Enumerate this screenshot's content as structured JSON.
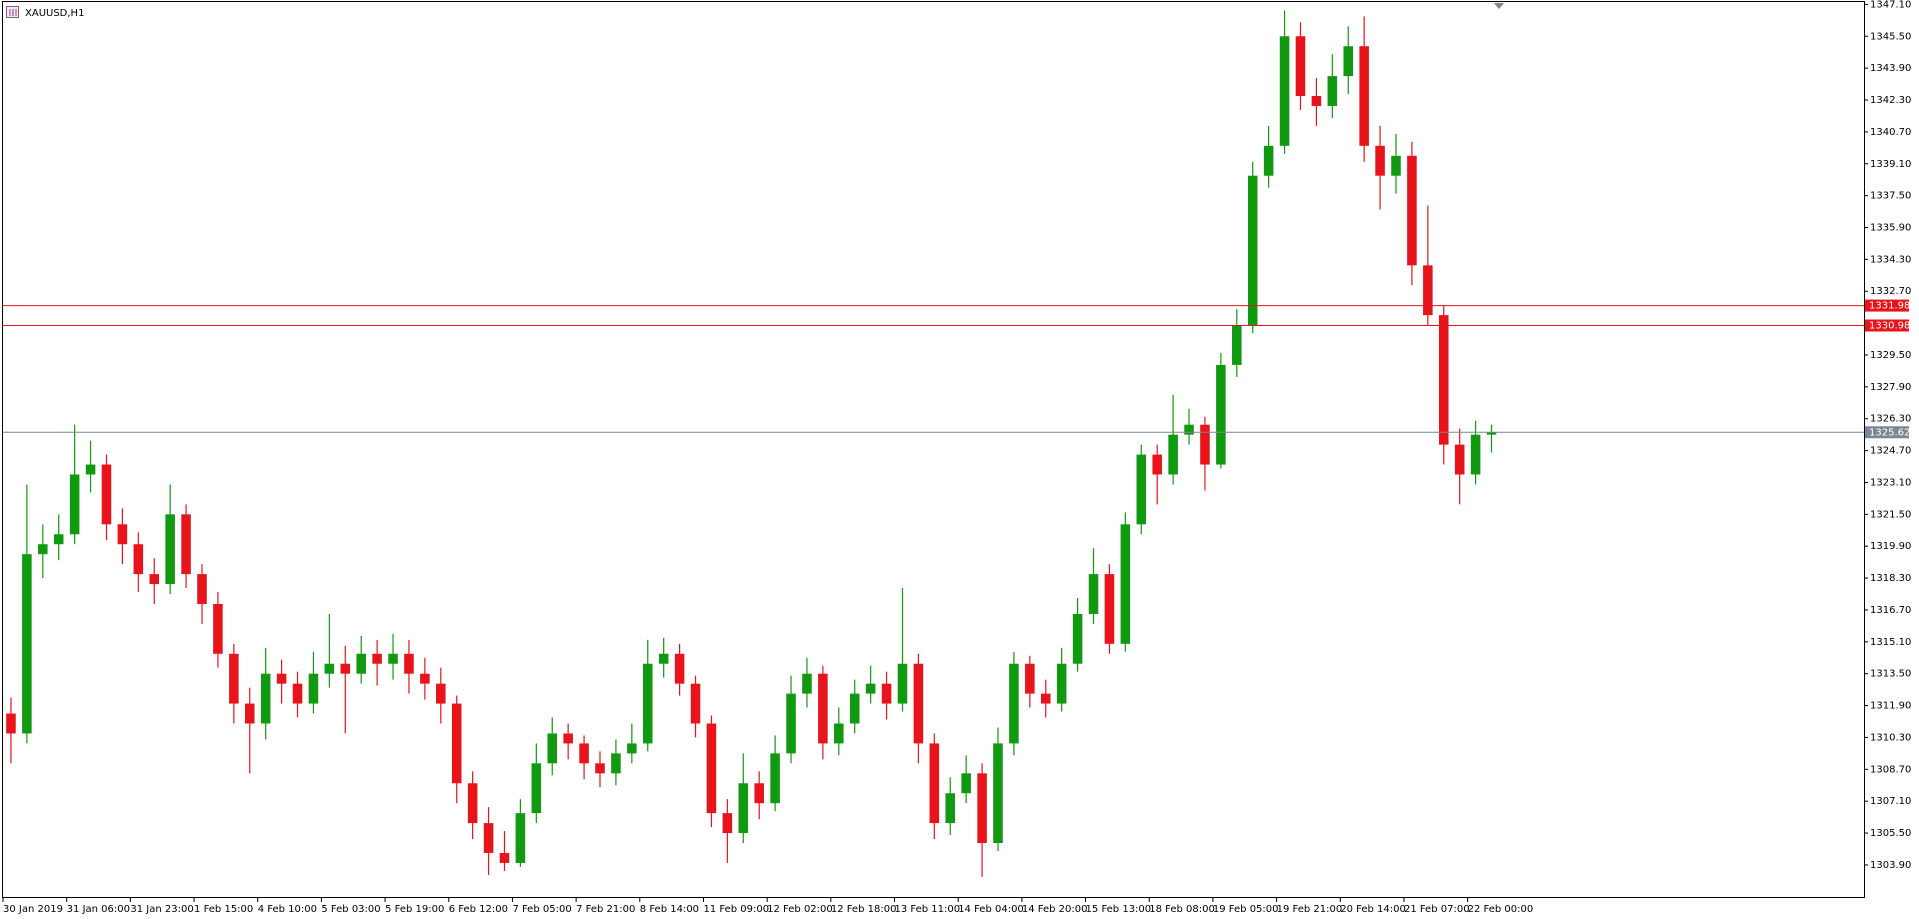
{
  "chart_data": {
    "type": "candlestick",
    "title": "XAUUSD,H1",
    "up_color": "#119911",
    "down_color": "#e8141c",
    "ylim": [
      1302.24,
      1347.22
    ],
    "yticks": [
      {
        "value": 1303.9,
        "label": "1303.90"
      },
      {
        "value": 1305.5,
        "label": "1305.50"
      },
      {
        "value": 1307.1,
        "label": "1307.10"
      },
      {
        "value": 1308.7,
        "label": "1308.70"
      },
      {
        "value": 1310.3,
        "label": "1310.30"
      },
      {
        "value": 1311.9,
        "label": "1311.90"
      },
      {
        "value": 1313.5,
        "label": "1313.50"
      },
      {
        "value": 1315.1,
        "label": "1315.10"
      },
      {
        "value": 1316.7,
        "label": "1316.70"
      },
      {
        "value": 1318.3,
        "label": "1318.30"
      },
      {
        "value": 1319.9,
        "label": "1319.90"
      },
      {
        "value": 1321.5,
        "label": "1321.50"
      },
      {
        "value": 1323.1,
        "label": "1323.10"
      },
      {
        "value": 1324.7,
        "label": "1324.70"
      },
      {
        "value": 1326.3,
        "label": "1326.30"
      },
      {
        "value": 1327.9,
        "label": "1327.90"
      },
      {
        "value": 1329.5,
        "label": "1329.50"
      },
      {
        "value": 1332.7,
        "label": "1332.70"
      },
      {
        "value": 1334.3,
        "label": "1334.30"
      },
      {
        "value": 1335.9,
        "label": "1335.90"
      },
      {
        "value": 1337.5,
        "label": "1337.50"
      },
      {
        "value": 1339.1,
        "label": "1339.10"
      },
      {
        "value": 1340.7,
        "label": "1340.70"
      },
      {
        "value": 1342.3,
        "label": "1342.30"
      },
      {
        "value": 1343.9,
        "label": "1343.90"
      },
      {
        "value": 1345.5,
        "label": "1345.50"
      },
      {
        "value": 1347.1,
        "label": "1347.10"
      }
    ],
    "levels": [
      {
        "value": 1331.98,
        "color": "#e8141c"
      },
      {
        "value": 1330.98,
        "color": "#e8141c"
      },
      {
        "value": 1325.62,
        "color": "#7a8794"
      }
    ],
    "categories": [
      "30 Jan 2019",
      null,
      null,
      null,
      "31 Jan 06:00",
      null,
      null,
      null,
      "31 Jan 23:00",
      null,
      null,
      null,
      "1 Feb 15:00",
      null,
      null,
      null,
      "4 Feb 10:00",
      null,
      null,
      null,
      "5 Feb 03:00",
      null,
      null,
      null,
      "5 Feb 19:00",
      null,
      null,
      null,
      "6 Feb 12:00",
      null,
      null,
      null,
      "7 Feb 05:00",
      null,
      null,
      null,
      "7 Feb 21:00",
      null,
      null,
      null,
      "8 Feb 14:00",
      null,
      null,
      null,
      "11 Feb 09:00",
      null,
      null,
      null,
      "12 Feb 02:00",
      null,
      null,
      null,
      "12 Feb 18:00",
      null,
      null,
      null,
      "13 Feb 11:00",
      null,
      null,
      null,
      "14 Feb 04:00",
      null,
      null,
      null,
      "14 Feb 20:00",
      null,
      null,
      null,
      "15 Feb 13:00",
      null,
      null,
      null,
      "18 Feb 08:00",
      null,
      null,
      null,
      "19 Feb 05:00",
      null,
      null,
      null,
      "19 Feb 21:00",
      null,
      null,
      null,
      "20 Feb 14:00",
      null,
      null,
      null,
      "21 Feb 07:00",
      null,
      null,
      null,
      "22 Feb 00:00",
      null
    ],
    "open": [
      1311.5,
      1310.5,
      1319.5,
      1320.0,
      1320.5,
      1323.5,
      1324.0,
      1321.0,
      1320.0,
      1318.5,
      1318.0,
      1321.5,
      1318.5,
      1317.0,
      1314.5,
      1312.0,
      1311.0,
      1313.5,
      1313.0,
      1312.0,
      1313.5,
      1314.0,
      1313.5,
      1314.5,
      1314.0,
      1314.5,
      1313.5,
      1313.0,
      1312.0,
      1308.0,
      1306.0,
      1304.5,
      1304.0,
      1306.5,
      1309.0,
      1310.5,
      1310.0,
      1309.0,
      1308.5,
      1309.5,
      1310.0,
      1314.0,
      1314.5,
      1313.0,
      1311.0,
      1306.5,
      1305.5,
      1308.0,
      1307.0,
      1309.5,
      1312.5,
      1313.5,
      1310.0,
      1311.0,
      1312.5,
      1313.0,
      1312.0,
      1314.0,
      1310.0,
      1306.0,
      1307.5,
      1308.5,
      1305.0,
      1310.0,
      1314.0,
      1312.5,
      1312.0,
      1314.0,
      1316.5,
      1318.5,
      1315.0,
      1321.0,
      1324.5,
      1323.5,
      1325.5,
      1326.0,
      1324.0,
      1329.0,
      1331.0,
      1338.5,
      1340.0,
      1345.5,
      1342.5,
      1342.0,
      1343.5,
      1345.0,
      1340.0,
      1338.5,
      1339.5,
      1334.0,
      1331.5,
      1325.0,
      1323.5,
      1325.5
    ],
    "high": [
      1312.3,
      1323.0,
      1321.0,
      1321.5,
      1326.0,
      1325.2,
      1324.5,
      1321.8,
      1320.6,
      1319.3,
      1323.0,
      1322.0,
      1319.0,
      1317.6,
      1315.0,
      1312.8,
      1314.8,
      1314.2,
      1313.6,
      1314.6,
      1316.5,
      1314.9,
      1315.4,
      1315.2,
      1315.5,
      1315.2,
      1314.3,
      1313.8,
      1312.4,
      1308.6,
      1306.8,
      1305.6,
      1307.2,
      1310.0,
      1311.3,
      1311.0,
      1310.4,
      1309.6,
      1310.2,
      1311.0,
      1315.2,
      1315.3,
      1315.0,
      1313.4,
      1311.4,
      1307.2,
      1309.5,
      1308.6,
      1310.4,
      1313.4,
      1314.3,
      1313.9,
      1311.8,
      1313.2,
      1313.9,
      1313.6,
      1317.8,
      1314.5,
      1310.5,
      1308.3,
      1309.4,
      1309.0,
      1310.8,
      1314.6,
      1314.4,
      1313.2,
      1314.8,
      1317.3,
      1319.8,
      1319.0,
      1321.6,
      1325.0,
      1325.0,
      1327.5,
      1326.8,
      1326.4,
      1329.6,
      1331.8,
      1339.2,
      1341.0,
      1346.8,
      1346.2,
      1343.4,
      1344.6,
      1346.0,
      1346.5,
      1341.0,
      1340.6,
      1340.2,
      1337.0,
      1332.0,
      1325.8,
      1326.2,
      1326.0
    ],
    "low": [
      1309.0,
      1310.0,
      1318.3,
      1319.2,
      1320.0,
      1322.6,
      1320.2,
      1319.0,
      1317.6,
      1317.0,
      1317.5,
      1317.8,
      1316.0,
      1313.8,
      1311.0,
      1308.5,
      1310.2,
      1312.0,
      1311.3,
      1311.5,
      1312.8,
      1310.5,
      1313.0,
      1312.9,
      1313.2,
      1312.5,
      1312.2,
      1311.0,
      1307.0,
      1305.2,
      1303.4,
      1303.6,
      1303.8,
      1306.0,
      1308.4,
      1309.2,
      1308.2,
      1307.8,
      1307.9,
      1309.0,
      1309.6,
      1313.3,
      1312.4,
      1310.3,
      1305.8,
      1304.0,
      1305.0,
      1306.2,
      1306.6,
      1309.0,
      1311.8,
      1309.2,
      1309.4,
      1310.5,
      1312.0,
      1311.2,
      1311.6,
      1309.0,
      1305.2,
      1305.4,
      1307.0,
      1303.3,
      1304.6,
      1309.4,
      1311.8,
      1311.3,
      1311.6,
      1313.6,
      1316.0,
      1314.5,
      1314.6,
      1320.5,
      1322.0,
      1323.0,
      1325.0,
      1322.7,
      1323.8,
      1328.4,
      1330.6,
      1337.9,
      1339.6,
      1341.8,
      1341.0,
      1341.4,
      1342.6,
      1339.2,
      1336.8,
      1337.6,
      1333.0,
      1331.0,
      1324.0,
      1322.0,
      1323.0,
      1324.6
    ],
    "close": [
      1310.5,
      1319.5,
      1320.0,
      1320.5,
      1323.5,
      1324.0,
      1321.0,
      1320.0,
      1318.5,
      1318.0,
      1321.5,
      1318.5,
      1317.0,
      1314.5,
      1312.0,
      1311.0,
      1313.5,
      1313.0,
      1312.0,
      1313.5,
      1314.0,
      1313.5,
      1314.5,
      1314.0,
      1314.5,
      1313.5,
      1313.0,
      1312.0,
      1308.0,
      1306.0,
      1304.5,
      1304.0,
      1306.5,
      1309.0,
      1310.5,
      1310.0,
      1309.0,
      1308.5,
      1309.5,
      1310.0,
      1314.0,
      1314.5,
      1313.0,
      1311.0,
      1306.5,
      1305.5,
      1308.0,
      1307.0,
      1309.5,
      1312.5,
      1313.5,
      1310.0,
      1311.0,
      1312.5,
      1313.0,
      1312.0,
      1314.0,
      1310.0,
      1306.0,
      1307.5,
      1308.5,
      1305.0,
      1310.0,
      1314.0,
      1312.5,
      1312.0,
      1314.0,
      1316.5,
      1318.5,
      1315.0,
      1321.0,
      1324.5,
      1323.5,
      1325.5,
      1326.0,
      1324.0,
      1329.0,
      1331.0,
      1338.5,
      1340.0,
      1345.5,
      1342.5,
      1342.0,
      1343.5,
      1345.0,
      1340.0,
      1338.5,
      1339.5,
      1334.0,
      1331.5,
      1325.0,
      1323.5,
      1325.5,
      1325.62
    ]
  }
}
